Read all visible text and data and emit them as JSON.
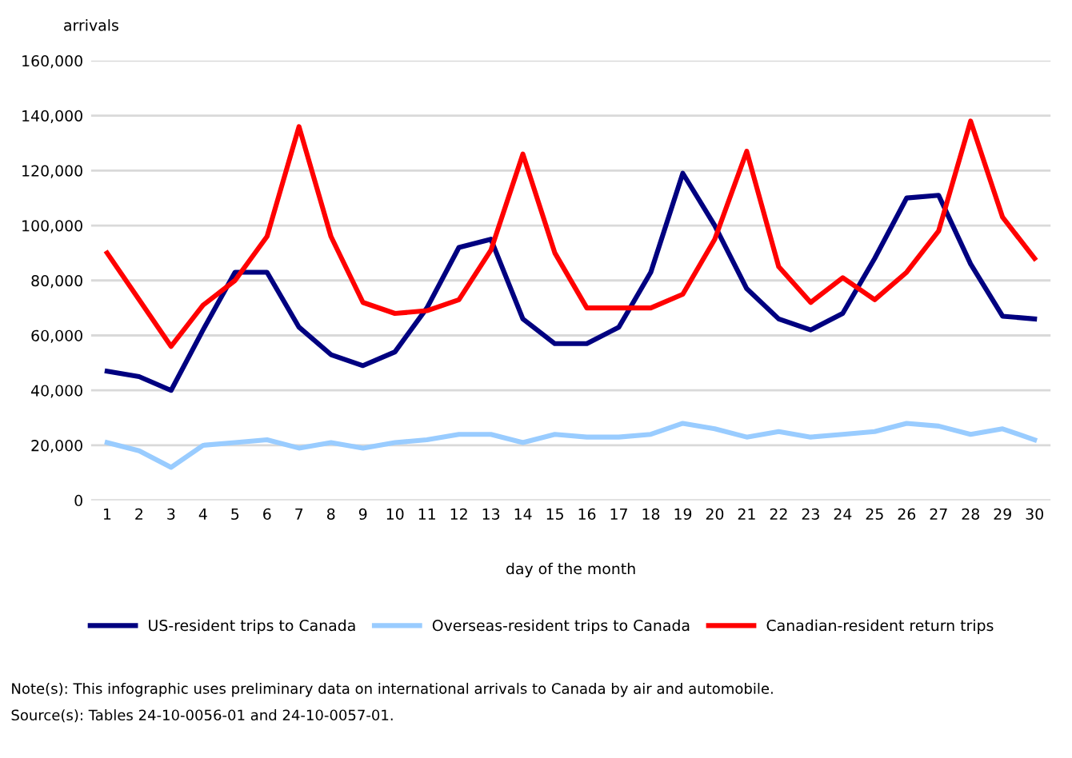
{
  "chart_data": {
    "type": "line",
    "ylabel": "arrivals",
    "xlabel": "day of the month",
    "categories": [
      "1",
      "2",
      "3",
      "4",
      "5",
      "6",
      "7",
      "8",
      "9",
      "10",
      "11",
      "12",
      "13",
      "14",
      "15",
      "16",
      "17",
      "18",
      "19",
      "20",
      "21",
      "22",
      "23",
      "24",
      "25",
      "26",
      "27",
      "28",
      "29",
      "30"
    ],
    "series": [
      {
        "name": "US-resident trips to Canada",
        "color": "#000080",
        "values": [
          47000,
          45000,
          40000,
          62000,
          83000,
          83000,
          63000,
          53000,
          49000,
          54000,
          70000,
          92000,
          95000,
          66000,
          57000,
          57000,
          63000,
          83000,
          119000,
          100000,
          77000,
          66000,
          62000,
          68000,
          88000,
          110000,
          111000,
          86000,
          67000,
          66000
        ]
      },
      {
        "name": "Overseas-resident trips to Canada",
        "color": "#99ccff",
        "values": [
          21000,
          18000,
          12000,
          20000,
          21000,
          22000,
          19000,
          21000,
          19000,
          21000,
          22000,
          24000,
          24000,
          21000,
          24000,
          23000,
          23000,
          24000,
          28000,
          26000,
          23000,
          25000,
          23000,
          24000,
          25000,
          28000,
          27000,
          24000,
          26000,
          22000
        ]
      },
      {
        "name": "Canadian-resident return trips",
        "color": "#ff0000",
        "values": [
          90000,
          73000,
          56000,
          71000,
          80000,
          96000,
          136000,
          96000,
          72000,
          68000,
          69000,
          73000,
          91000,
          126000,
          90000,
          70000,
          70000,
          70000,
          75000,
          95000,
          127000,
          85000,
          72000,
          81000,
          73000,
          83000,
          98000,
          138000,
          103000,
          88000
        ]
      }
    ],
    "ylim": [
      0,
      160000
    ],
    "yticks": [
      {
        "value": 0,
        "label": "0"
      },
      {
        "value": 20000,
        "label": "20,000"
      },
      {
        "value": 40000,
        "label": "40,000"
      },
      {
        "value": 60000,
        "label": "60,000"
      },
      {
        "value": 80000,
        "label": "80,000"
      },
      {
        "value": 100000,
        "label": "100,000"
      },
      {
        "value": 120000,
        "label": "120,000"
      },
      {
        "value": 140000,
        "label": "140,000"
      },
      {
        "value": 160000,
        "label": "160,000"
      }
    ],
    "grid": "y",
    "legend": "bottom",
    "marker": "none",
    "line_style": "solid",
    "annotations": [
      "Note(s): This infographic uses preliminary data on international arrivals to Canada by air and automobile.",
      "Source(s): Tables 24-10-0056-01 and 24-10-0057-01."
    ]
  }
}
